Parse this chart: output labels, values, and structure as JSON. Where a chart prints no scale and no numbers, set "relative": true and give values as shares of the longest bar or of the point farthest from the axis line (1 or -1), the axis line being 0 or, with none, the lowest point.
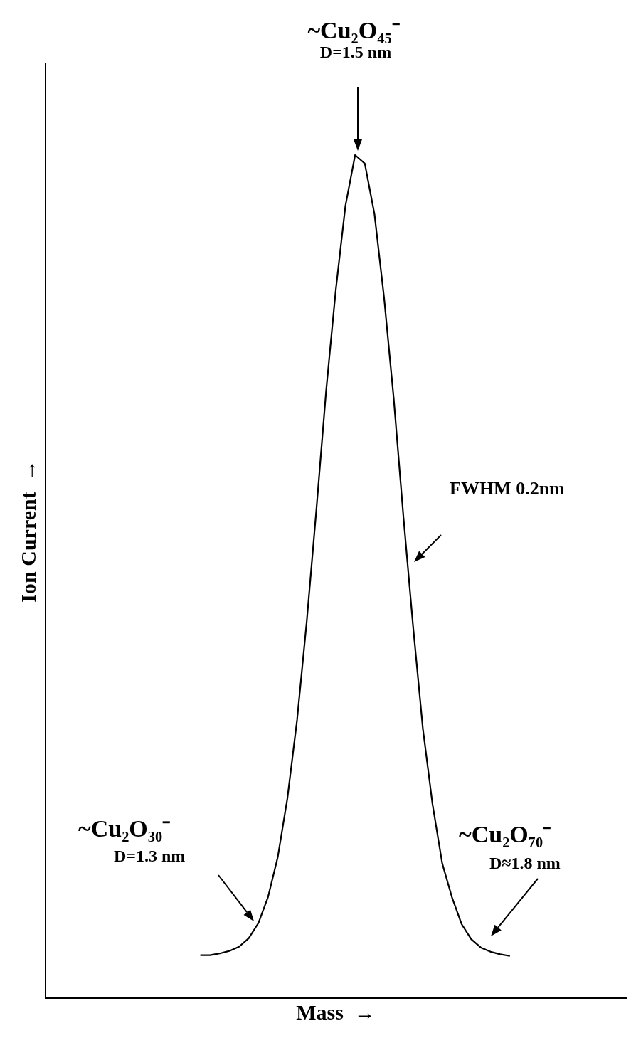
{
  "chart_data": {
    "type": "line",
    "relative": true,
    "xlabel": "Mass  →",
    "ylabel": "Ion Current  →",
    "tick_labels": false,
    "marker": "none",
    "categories": [
      null,
      null,
      null,
      null,
      null,
      null,
      null,
      null,
      null,
      null,
      null,
      null,
      null,
      null,
      null,
      null,
      null,
      null,
      null,
      null,
      null,
      null,
      null,
      null,
      null,
      null,
      null,
      null,
      null,
      null,
      null,
      null,
      null,
      null,
      null,
      null,
      null,
      null,
      null,
      null,
      null,
      null,
      null,
      null,
      null,
      null,
      null,
      null,
      null,
      null,
      null,
      null,
      null,
      null,
      null,
      null,
      null,
      null,
      null,
      null,
      null
    ],
    "series": [
      {
        "color": "#000000",
        "values": [
          null,
          null,
          null,
          null,
          null,
          null,
          null,
          null,
          null,
          null,
          null,
          null,
          null,
          null,
          null,
          null,
          0.051,
          0.051,
          0.053,
          0.056,
          0.061,
          0.071,
          0.089,
          0.12,
          0.167,
          0.237,
          0.33,
          0.447,
          0.58,
          0.72,
          0.84,
          0.94,
          1,
          0.99,
          0.93,
          0.83,
          0.71,
          0.57,
          0.44,
          0.32,
          0.23,
          0.16,
          0.12,
          0.088,
          0.07,
          0.06,
          0.055,
          0.052,
          0.05,
          null,
          null,
          null,
          null,
          null,
          null,
          null,
          null,
          null,
          null,
          null,
          null
        ]
      }
    ],
    "annotations": [
      "~Cu₂O₄₅⁻",
      "D=1.5 nm",
      "FWHM 0.2nm",
      "~Cu₂O₃₀⁻",
      "D=1.3 nm",
      "~Cu₂O₇₀⁻",
      "D≈1.8 nm"
    ]
  }
}
